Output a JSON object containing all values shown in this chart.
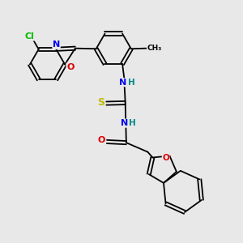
{
  "bg_color": "#e8e8e8",
  "bond_color": "#000000",
  "bond_width": 1.3,
  "atom_colors": {
    "N": "#0000ee",
    "O": "#dd0000",
    "S": "#bbbb00",
    "Cl": "#00bb00",
    "H": "#008888",
    "C": "#000000"
  },
  "font_size": 7.5,
  "fig_size": [
    3.0,
    3.0
  ],
  "dpi": 100
}
